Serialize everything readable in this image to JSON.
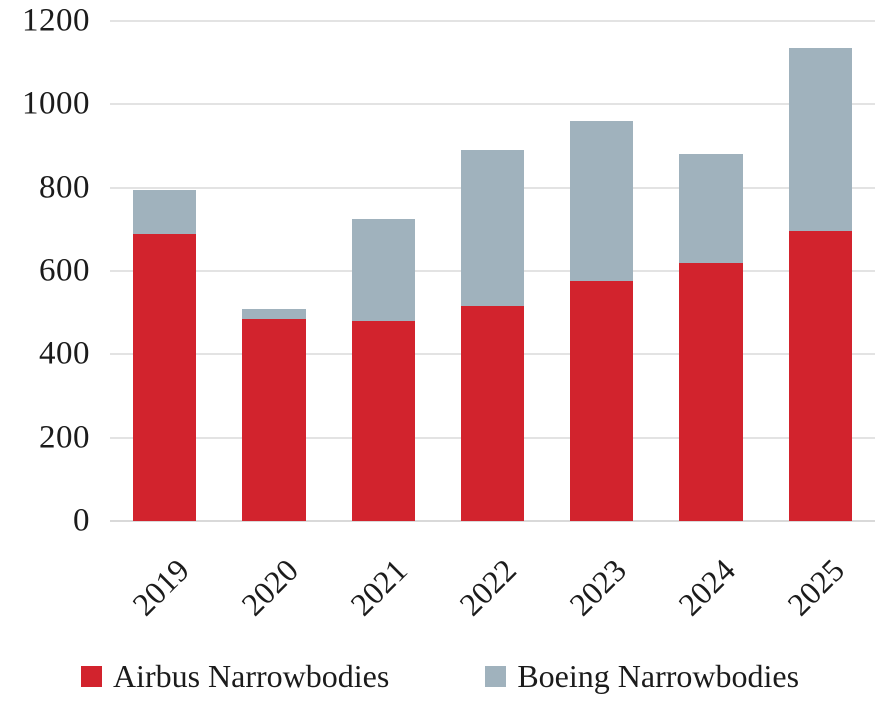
{
  "chart_data": {
    "type": "bar",
    "stacked": true,
    "title": "",
    "xlabel": "",
    "ylabel": "",
    "categories": [
      "2019",
      "2020",
      "2021",
      "2022",
      "2023",
      "2024",
      "2025"
    ],
    "series": [
      {
        "name": "Airbus Narrowbodies",
        "color": "#d2232d",
        "values": [
          690,
          485,
          480,
          515,
          575,
          620,
          695
        ]
      },
      {
        "name": "Boeing Narrowbodies",
        "color": "#a0b2bd",
        "values": [
          105,
          25,
          245,
          375,
          385,
          260,
          440
        ]
      }
    ],
    "totals": [
      795,
      510,
      725,
      890,
      960,
      880,
      1135
    ],
    "ylim": [
      0,
      1200
    ],
    "y_ticks": [
      0,
      200,
      400,
      600,
      800,
      1000,
      1200
    ],
    "grid": true,
    "legend_position": "bottom"
  },
  "colors": {
    "airbus_red": "#d2232d",
    "boeing_gray": "#a0b2bd",
    "gridline": "#e3e3e3",
    "baseline": "#d9d9d9",
    "text": "#1b1b1b",
    "background": "#ffffff"
  }
}
